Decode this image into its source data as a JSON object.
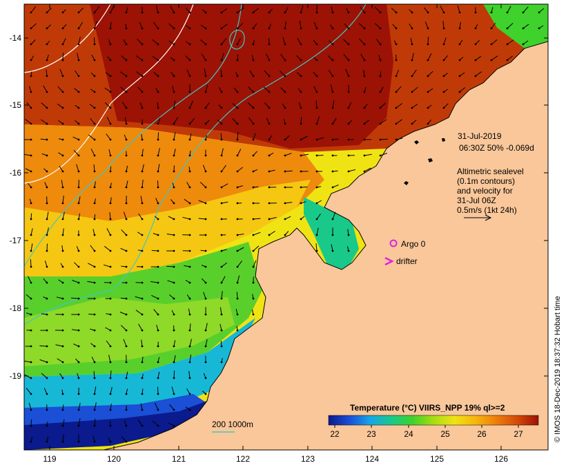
{
  "map": {
    "axes": {
      "lon_ticks": [
        "119",
        "120",
        "121",
        "122",
        "123",
        "124",
        "125",
        "126"
      ],
      "lat_ticks": [
        "-14",
        "-15",
        "-16",
        "-17",
        "-18",
        "-19"
      ]
    },
    "info": {
      "date": "31-Jul-2019",
      "time_line": "06:30Z  50% -0.069d",
      "sealevel_lines": [
        "Altimetric sealevel",
        "(0.1m contours)",
        "and velocity for",
        "31-Jul 06Z",
        "0.5m/s (1kt 24h)"
      ]
    },
    "legend": {
      "argo": "Argo 0",
      "drifter": "drifter",
      "depth": "200  1000m"
    },
    "colorbar": {
      "title": "Temperature (°C) VIIRS_NPP 19% ql>=2",
      "ticks": [
        "22",
        "23",
        "24",
        "25",
        "26",
        "27"
      ],
      "colors": [
        "#0b1a8c",
        "#1a4fd6",
        "#17a6e6",
        "#19c98a",
        "#3fd12c",
        "#a6de12",
        "#f0e313",
        "#f5b60e",
        "#ee7d0c",
        "#d44a08",
        "#9c1205"
      ]
    },
    "credit": "© IMOS 18-Dec-2019 18:37:32 Hobart time",
    "colors": {
      "land": "#f9c79a",
      "contour": "#ffffff",
      "isobath": "#40c8c0",
      "argo": "#e020e0"
    }
  }
}
